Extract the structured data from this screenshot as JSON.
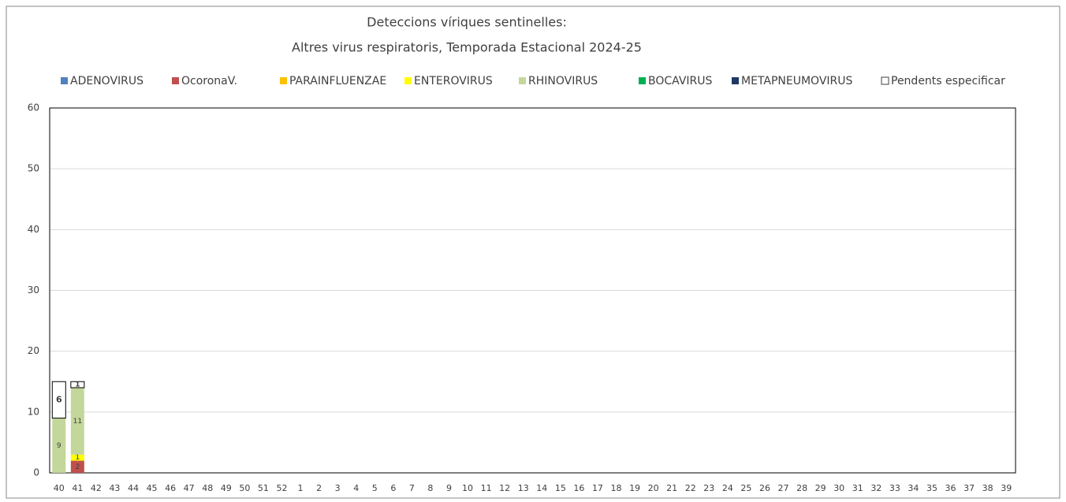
{
  "chart_data": {
    "type": "stacked_bar",
    "title": "Deteccions víriques sentinelles:",
    "subtitle": "Altres virus respiratoris,  Temporada Estacional 2024-25",
    "categories": [
      "40",
      "41",
      "42",
      "43",
      "44",
      "45",
      "46",
      "47",
      "48",
      "49",
      "50",
      "51",
      "52",
      "1",
      "2",
      "3",
      "4",
      "5",
      "6",
      "7",
      "8",
      "9",
      "10",
      "11",
      "12",
      "13",
      "14",
      "15",
      "16",
      "17",
      "18",
      "19",
      "20",
      "21",
      "22",
      "23",
      "24",
      "25",
      "26",
      "27",
      "28",
      "29",
      "30",
      "31",
      "32",
      "33",
      "34",
      "35",
      "36",
      "37",
      "38",
      "39"
    ],
    "series": [
      {
        "name": "ADENOVIRUS",
        "color": "#4f81bd",
        "values": [
          null,
          null,
          null,
          null,
          null,
          null,
          null,
          null,
          null,
          null,
          null,
          null,
          null,
          null,
          null,
          null,
          null,
          null,
          null,
          null,
          null,
          null,
          null,
          null,
          null,
          null,
          null,
          null,
          null,
          null,
          null,
          null,
          null,
          null,
          null,
          null,
          null,
          null,
          null,
          null,
          null,
          null,
          null,
          null,
          null,
          null,
          null,
          null,
          null,
          null,
          null,
          null
        ]
      },
      {
        "name": "OcoronaV.",
        "color": "#c0504d",
        "values": [
          null,
          2,
          null,
          null,
          null,
          null,
          null,
          null,
          null,
          null,
          null,
          null,
          null,
          null,
          null,
          null,
          null,
          null,
          null,
          null,
          null,
          null,
          null,
          null,
          null,
          null,
          null,
          null,
          null,
          null,
          null,
          null,
          null,
          null,
          null,
          null,
          null,
          null,
          null,
          null,
          null,
          null,
          null,
          null,
          null,
          null,
          null,
          null,
          null,
          null,
          null,
          null
        ]
      },
      {
        "name": "PARAINFLUENZAE",
        "color": "#ffc000",
        "values": [
          null,
          null,
          null,
          null,
          null,
          null,
          null,
          null,
          null,
          null,
          null,
          null,
          null,
          null,
          null,
          null,
          null,
          null,
          null,
          null,
          null,
          null,
          null,
          null,
          null,
          null,
          null,
          null,
          null,
          null,
          null,
          null,
          null,
          null,
          null,
          null,
          null,
          null,
          null,
          null,
          null,
          null,
          null,
          null,
          null,
          null,
          null,
          null,
          null,
          null,
          null,
          null
        ]
      },
      {
        "name": "ENTEROVIRUS",
        "color": "#ffff00",
        "values": [
          null,
          1,
          null,
          null,
          null,
          null,
          null,
          null,
          null,
          null,
          null,
          null,
          null,
          null,
          null,
          null,
          null,
          null,
          null,
          null,
          null,
          null,
          null,
          null,
          null,
          null,
          null,
          null,
          null,
          null,
          null,
          null,
          null,
          null,
          null,
          null,
          null,
          null,
          null,
          null,
          null,
          null,
          null,
          null,
          null,
          null,
          null,
          null,
          null,
          null,
          null,
          null
        ]
      },
      {
        "name": "RHINOVIRUS",
        "color": "#c4d79b",
        "values": [
          9,
          11,
          null,
          null,
          null,
          null,
          null,
          null,
          null,
          null,
          null,
          null,
          null,
          null,
          null,
          null,
          null,
          null,
          null,
          null,
          null,
          null,
          null,
          null,
          null,
          null,
          null,
          null,
          null,
          null,
          null,
          null,
          null,
          null,
          null,
          null,
          null,
          null,
          null,
          null,
          null,
          null,
          null,
          null,
          null,
          null,
          null,
          null,
          null,
          null,
          null,
          null
        ]
      },
      {
        "name": "BOCAVIRUS",
        "color": "#00b050",
        "values": [
          null,
          null,
          null,
          null,
          null,
          null,
          null,
          null,
          null,
          null,
          null,
          null,
          null,
          null,
          null,
          null,
          null,
          null,
          null,
          null,
          null,
          null,
          null,
          null,
          null,
          null,
          null,
          null,
          null,
          null,
          null,
          null,
          null,
          null,
          null,
          null,
          null,
          null,
          null,
          null,
          null,
          null,
          null,
          null,
          null,
          null,
          null,
          null,
          null,
          null,
          null,
          null
        ]
      },
      {
        "name": "METAPNEUMOVIRUS",
        "color": "#1f3864",
        "values": [
          null,
          null,
          null,
          null,
          null,
          null,
          null,
          null,
          null,
          null,
          null,
          null,
          null,
          null,
          null,
          null,
          null,
          null,
          null,
          null,
          null,
          null,
          null,
          null,
          null,
          null,
          null,
          null,
          null,
          null,
          null,
          null,
          null,
          null,
          null,
          null,
          null,
          null,
          null,
          null,
          null,
          null,
          null,
          null,
          null,
          null,
          null,
          null,
          null,
          null,
          null,
          null
        ]
      },
      {
        "name": "Pendents especificar",
        "color": "#ffffff",
        "values": [
          6,
          1,
          null,
          null,
          null,
          null,
          null,
          null,
          null,
          null,
          null,
          null,
          null,
          null,
          null,
          null,
          null,
          null,
          null,
          null,
          null,
          null,
          null,
          null,
          null,
          null,
          null,
          null,
          null,
          null,
          null,
          null,
          null,
          null,
          null,
          null,
          null,
          null,
          null,
          null,
          null,
          null,
          null,
          null,
          null,
          null,
          null,
          null,
          null,
          null,
          null,
          null
        ]
      }
    ],
    "ylim": [
      0,
      60
    ],
    "yticks": [
      0,
      10,
      20,
      30,
      40,
      50,
      60
    ],
    "grid": true,
    "legend": "top"
  }
}
